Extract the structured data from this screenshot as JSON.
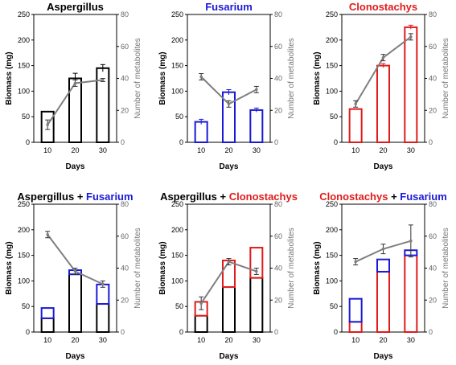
{
  "colors": {
    "aspergillus": "#000000",
    "fusarium": "#1a1ad6",
    "clonostachys": "#e01b1b",
    "line": "#7f7f7f"
  },
  "chart_data": [
    {
      "type": "bar",
      "title": [
        {
          "text": "Aspergillus",
          "color": "aspergillus"
        }
      ],
      "xlabel": "Days",
      "ylabel": "Biomass (mg)",
      "y2label": "Number of metabolites",
      "categories": [
        "10",
        "20",
        "30"
      ],
      "ylim": [
        0,
        250
      ],
      "y2lim": [
        0,
        80
      ],
      "bars": [
        {
          "segments": [
            {
              "value": 60,
              "color": "aspergillus"
            }
          ]
        },
        {
          "segments": [
            {
              "value": 125,
              "color": "aspergillus"
            }
          ],
          "err": 10
        },
        {
          "segments": [
            {
              "value": 145,
              "color": "aspergillus"
            }
          ],
          "err": 7
        }
      ],
      "metabolites": {
        "values": [
          11,
          37,
          39
        ],
        "err": [
          3,
          2,
          1
        ]
      }
    },
    {
      "type": "bar",
      "title": [
        {
          "text": "Fusarium",
          "color": "fusarium"
        }
      ],
      "xlabel": "Days",
      "ylabel": "Biomass (mg)",
      "y2label": "Number of metabolites",
      "categories": [
        "10",
        "20",
        "30"
      ],
      "ylim": [
        0,
        250
      ],
      "y2lim": [
        0,
        80
      ],
      "bars": [
        {
          "segments": [
            {
              "value": 40,
              "color": "fusarium"
            }
          ],
          "err": 5
        },
        {
          "segments": [
            {
              "value": 98,
              "color": "fusarium"
            }
          ],
          "err": 5
        },
        {
          "segments": [
            {
              "value": 63,
              "color": "fusarium"
            }
          ],
          "err": 4
        }
      ],
      "metabolites": {
        "values": [
          41,
          24,
          33
        ],
        "err": [
          2,
          2,
          2
        ]
      }
    },
    {
      "type": "bar",
      "title": [
        {
          "text": "Clonostachys",
          "color": "clonostachys"
        }
      ],
      "xlabel": "Days",
      "ylabel": "Biomass (mg)",
      "y2label": "Number of metabolites",
      "categories": [
        "10",
        "20",
        "30"
      ],
      "ylim": [
        0,
        250
      ],
      "y2lim": [
        0,
        80
      ],
      "bars": [
        {
          "segments": [
            {
              "value": 65,
              "color": "clonostachys"
            }
          ]
        },
        {
          "segments": [
            {
              "value": 150,
              "color": "clonostachys"
            }
          ],
          "err": 4
        },
        {
          "segments": [
            {
              "value": 225,
              "color": "clonostachys"
            }
          ],
          "err": 4
        }
      ],
      "metabolites": {
        "values": [
          24,
          53,
          66
        ],
        "err": [
          2,
          2,
          2
        ]
      }
    },
    {
      "type": "bar",
      "title": [
        {
          "text": "Aspergillus",
          "color": "aspergillus"
        },
        {
          "text": " + ",
          "color": "aspergillus"
        },
        {
          "text": "Fusarium",
          "color": "fusarium"
        }
      ],
      "xlabel": "Days",
      "ylabel": "Biomass (mg)",
      "y2label": "Number of metabolites",
      "categories": [
        "10",
        "20",
        "30"
      ],
      "ylim": [
        0,
        250
      ],
      "y2lim": [
        0,
        80
      ],
      "bars": [
        {
          "segments": [
            {
              "value": 27,
              "color": "aspergillus"
            },
            {
              "value": 20,
              "color": "fusarium"
            }
          ]
        },
        {
          "segments": [
            {
              "value": 113,
              "color": "aspergillus"
            },
            {
              "value": 8,
              "color": "fusarium"
            }
          ]
        },
        {
          "segments": [
            {
              "value": 55,
              "color": "aspergillus"
            },
            {
              "value": 38,
              "color": "fusarium"
            }
          ]
        }
      ],
      "metabolites": {
        "values": [
          61,
          38,
          30
        ],
        "err": [
          2,
          2,
          2
        ]
      }
    },
    {
      "type": "bar",
      "title": [
        {
          "text": "Aspergillus",
          "color": "aspergillus"
        },
        {
          "text": " + ",
          "color": "aspergillus"
        },
        {
          "text": "Clonostachys",
          "color": "clonostachys"
        }
      ],
      "xlabel": "Days",
      "ylabel": "Biomass (mg)",
      "y2label": "Number of metabolites",
      "categories": [
        "10",
        "20",
        "30"
      ],
      "ylim": [
        0,
        250
      ],
      "y2lim": [
        0,
        80
      ],
      "bars": [
        {
          "segments": [
            {
              "value": 32,
              "color": "aspergillus"
            },
            {
              "value": 27,
              "color": "clonostachys"
            }
          ]
        },
        {
          "segments": [
            {
              "value": 88,
              "color": "aspergillus"
            },
            {
              "value": 52,
              "color": "clonostachys"
            }
          ]
        },
        {
          "segments": [
            {
              "value": 106,
              "color": "aspergillus"
            },
            {
              "value": 59,
              "color": "clonostachys"
            }
          ]
        }
      ],
      "metabolites": {
        "values": [
          18,
          44,
          38
        ],
        "err": [
          4,
          2,
          2
        ]
      }
    },
    {
      "type": "bar",
      "title": [
        {
          "text": "Clonostachys",
          "color": "clonostachys"
        },
        {
          "text": " + ",
          "color": "aspergillus"
        },
        {
          "text": "Fusarium",
          "color": "fusarium"
        }
      ],
      "xlabel": "Days",
      "ylabel": "Biomass (mg)",
      "y2label": "Number of metabolites",
      "categories": [
        "10",
        "20",
        "30"
      ],
      "ylim": [
        0,
        250
      ],
      "y2lim": [
        0,
        80
      ],
      "bars": [
        {
          "segments": [
            {
              "value": 20,
              "color": "clonostachys"
            },
            {
              "value": 45,
              "color": "fusarium"
            }
          ]
        },
        {
          "segments": [
            {
              "value": 118,
              "color": "clonostachys"
            },
            {
              "value": 24,
              "color": "fusarium"
            }
          ]
        },
        {
          "segments": [
            {
              "value": 150,
              "color": "clonostachys"
            },
            {
              "value": 10,
              "color": "fusarium"
            }
          ]
        }
      ],
      "metabolites": {
        "values": [
          44,
          52,
          57
        ],
        "err": [
          2,
          3,
          10
        ]
      }
    }
  ]
}
